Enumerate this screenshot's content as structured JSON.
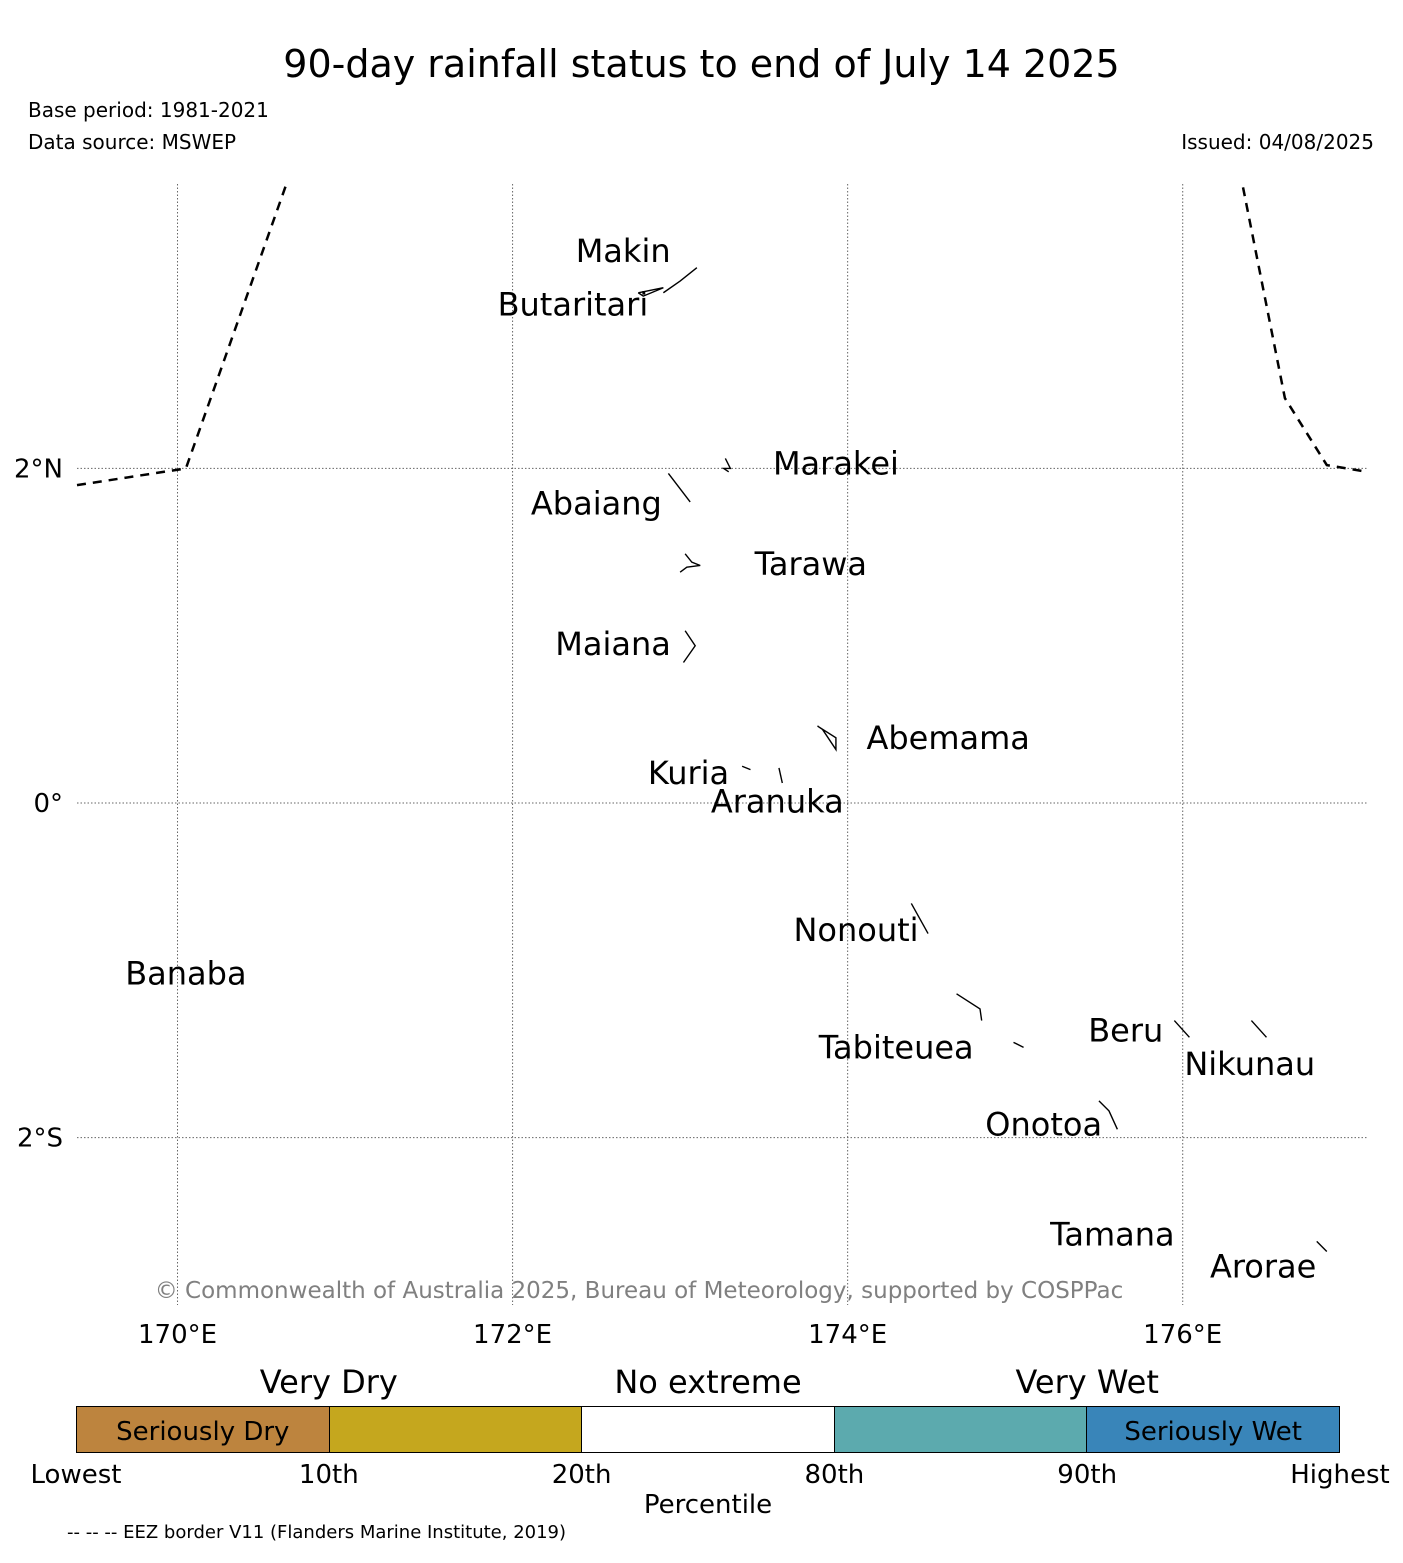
{
  "header": {
    "title": "90-day rainfall status to end of July 14 2025",
    "base_period": "Base period: 1981-2021",
    "data_source": "Data source: MSWEP",
    "issued": "Issued: 04/08/2025"
  },
  "map": {
    "lon_range": [
      169.4,
      177.1
    ],
    "lat_range": [
      -3.0,
      3.7
    ],
    "gridlines": true,
    "lon_ticks": [
      {
        "value": 170,
        "label": "170°E"
      },
      {
        "value": 172,
        "label": "172°E"
      },
      {
        "value": 174,
        "label": "174°E"
      },
      {
        "value": 176,
        "label": "176°E"
      }
    ],
    "lat_ticks": [
      {
        "value": 2,
        "label": "2°N"
      },
      {
        "value": 0,
        "label": "0°"
      },
      {
        "value": -2,
        "label": "2°S"
      }
    ],
    "islands": [
      {
        "name": "Makin",
        "label_lon": 172.66,
        "label_lat": 3.3,
        "outline": [
          [
            172.9,
            3.05
          ],
          [
            173.0,
            3.12
          ],
          [
            173.1,
            3.2
          ]
        ]
      },
      {
        "name": "Butaritari",
        "label_lon": 172.36,
        "label_lat": 2.98,
        "outline": [
          [
            172.75,
            3.05
          ],
          [
            172.9,
            3.08
          ],
          [
            172.78,
            3.03
          ],
          [
            172.75,
            3.05
          ]
        ]
      },
      {
        "name": "Marakei",
        "label_lon": 173.93,
        "label_lat": 2.03,
        "outline": [
          [
            173.27,
            2.06
          ],
          [
            173.3,
            2.0
          ],
          [
            173.26,
            2.0
          ],
          [
            173.29,
            1.98
          ]
        ]
      },
      {
        "name": "Abaiang",
        "label_lon": 172.5,
        "label_lat": 1.79,
        "outline": [
          [
            172.93,
            1.97
          ],
          [
            173.06,
            1.8
          ]
        ]
      },
      {
        "name": "Tarawa",
        "label_lon": 173.78,
        "label_lat": 1.43,
        "outline": [
          [
            173.03,
            1.49
          ],
          [
            173.07,
            1.44
          ],
          [
            173.12,
            1.42
          ],
          [
            173.04,
            1.41
          ],
          [
            173.0,
            1.38
          ]
        ]
      },
      {
        "name": "Maiana",
        "label_lon": 172.6,
        "label_lat": 0.95,
        "outline": [
          [
            173.03,
            1.03
          ],
          [
            173.09,
            0.94
          ],
          [
            173.02,
            0.84
          ]
        ]
      },
      {
        "name": "Abemama",
        "label_lon": 174.6,
        "label_lat": 0.39,
        "outline": [
          [
            173.82,
            0.46
          ],
          [
            173.93,
            0.39
          ],
          [
            173.93,
            0.32
          ],
          [
            173.85,
            0.44
          ],
          [
            173.82,
            0.46
          ]
        ]
      },
      {
        "name": "Kuria",
        "label_lon": 173.05,
        "label_lat": 0.18,
        "outline": [
          [
            173.37,
            0.22
          ],
          [
            173.42,
            0.2
          ]
        ]
      },
      {
        "name": "Aranuka",
        "label_lon": 173.58,
        "label_lat": 0.01,
        "outline": [
          [
            173.59,
            0.21
          ],
          [
            173.61,
            0.12
          ]
        ]
      },
      {
        "name": "Nonouti",
        "label_lon": 174.05,
        "label_lat": -0.76,
        "outline": [
          [
            174.38,
            -0.6
          ],
          [
            174.48,
            -0.78
          ]
        ]
      },
      {
        "name": "Banaba",
        "label_lon": 170.05,
        "label_lat": -1.02,
        "outline": []
      },
      {
        "name": "Tabiteuea",
        "label_lon": 174.29,
        "label_lat": -1.46,
        "outline": [
          [
            174.65,
            -1.14
          ],
          [
            174.79,
            -1.23
          ],
          [
            174.8,
            -1.3
          ]
        ]
      },
      {
        "name": "Beru",
        "label_lon": 175.66,
        "label_lat": -1.36,
        "outline": [
          [
            175.95,
            -1.3
          ],
          [
            176.04,
            -1.4
          ]
        ]
      },
      {
        "name": "Nikunau",
        "label_lon": 176.4,
        "label_lat": -1.56,
        "outline": [
          [
            176.41,
            -1.3
          ],
          [
            176.5,
            -1.4
          ]
        ]
      },
      {
        "name": "Onotoa",
        "label_lon": 175.17,
        "label_lat": -1.92,
        "outline": [
          [
            175.5,
            -1.78
          ],
          [
            175.56,
            -1.84
          ],
          [
            175.61,
            -1.95
          ]
        ]
      },
      {
        "name": "Tamana",
        "label_lon": 175.58,
        "label_lat": -2.58,
        "outline": []
      },
      {
        "name": "Arorae",
        "label_lon": 176.48,
        "label_lat": -2.77,
        "outline": [
          [
            176.8,
            -2.62
          ],
          [
            176.86,
            -2.68
          ]
        ]
      },
      {
        "name": "",
        "label_lon": 175.0,
        "label_lat": -1.45,
        "outline": [
          [
            174.99,
            -1.43
          ],
          [
            175.05,
            -1.46
          ]
        ]
      }
    ],
    "eez_lines": [
      [
        [
          169.4,
          1.9
        ],
        [
          170.05,
          2.0
        ],
        [
          170.65,
          3.7
        ]
      ],
      [
        [
          176.36,
          3.68
        ],
        [
          176.61,
          2.42
        ],
        [
          176.86,
          2.02
        ],
        [
          177.1,
          1.98
        ]
      ]
    ],
    "copyright": "© Commonwealth of Australia 2025, Bureau of Meteorology, supported by COSPPac"
  },
  "legend": {
    "category_headers": [
      {
        "label": "Very Dry",
        "pos": 1.0
      },
      {
        "label": "No extreme",
        "pos": 2.5
      },
      {
        "label": "Very Wet",
        "pos": 4.0
      }
    ],
    "segments": [
      {
        "label": "Seriously Dry",
        "color": "#bd843e"
      },
      {
        "label": "",
        "color": "#c5a71e"
      },
      {
        "label": "",
        "color": "#ffffff"
      },
      {
        "label": "",
        "color": "#5caaae"
      },
      {
        "label": "Seriously Wet",
        "color": "#3985b9"
      }
    ],
    "ticks": [
      "Lowest",
      "10th",
      "20th",
      "80th",
      "90th",
      "Highest"
    ],
    "axis_title": "Percentile"
  },
  "footnote": "-- -- -- EEZ border V11 (Flanders Marine Institute, 2019)"
}
